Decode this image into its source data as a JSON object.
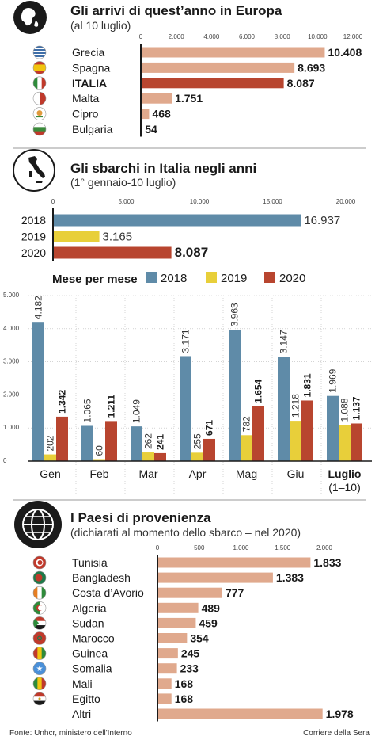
{
  "footer": {
    "source": "Fonte: Unhcr, ministero dell'Interno",
    "publisher": "Corriere della Sera"
  },
  "colors": {
    "bar_default": "#e0a98d",
    "italia": "#b8452f",
    "y2018": "#5f8ba8",
    "y2019": "#e8cf3a",
    "y2020": "#b8452f",
    "rule": "#999999"
  },
  "chart_data": [
    {
      "type": "bar",
      "orientation": "horizontal",
      "title": "Gli arrivi di quest’anno in Europa",
      "subtitle": "(al 10 luglio)",
      "categories": [
        "Grecia",
        "Spagna",
        "ITALIA",
        "Malta",
        "Cipro",
        "Bulgaria"
      ],
      "values": [
        10408,
        8693,
        8087,
        1751,
        468,
        54
      ],
      "value_labels": [
        "10.408",
        "8.693",
        "8.087",
        "1.751",
        "468",
        "54"
      ],
      "icons": [
        "greece-flag-icon",
        "spain-flag-icon",
        "italy-flag-icon",
        "malta-flag-icon",
        "cyprus-flag-icon",
        "bulgaria-flag-icon"
      ],
      "xlim": [
        0,
        12000
      ],
      "xticks": [
        "0",
        "2.000",
        "4.000",
        "6.000",
        "8.000",
        "10.000",
        "12.000"
      ],
      "highlight": "ITALIA"
    },
    {
      "type": "bar",
      "orientation": "horizontal",
      "title": "Gli sbarchi in Italia negli anni",
      "subtitle": "(1° gennaio-10 luglio)",
      "categories": [
        "2018",
        "2019",
        "2020"
      ],
      "values": [
        16937,
        3165,
        8087
      ],
      "value_labels": [
        "16.937",
        "3.165",
        "8.087"
      ],
      "xlim": [
        0,
        20000
      ],
      "xticks": [
        "0",
        "5.000",
        "10.000",
        "15.000",
        "20.000"
      ]
    },
    {
      "type": "bar",
      "orientation": "vertical",
      "title": "Mese per mese",
      "categories": [
        "Gen",
        "Feb",
        "Mar",
        "Apr",
        "Mag",
        "Giu",
        "Luglio"
      ],
      "category_note": "(1–10)",
      "series": [
        {
          "name": "2018",
          "values": [
            4182,
            1065,
            1049,
            3171,
            3963,
            3147,
            1969
          ],
          "labels": [
            "4.182",
            "1.065",
            "1.049",
            "3.171",
            "3.963",
            "3.147",
            "1.969"
          ]
        },
        {
          "name": "2019",
          "values": [
            202,
            60,
            262,
            255,
            782,
            1218,
            1088
          ],
          "labels": [
            "202",
            "60",
            "262",
            "255",
            "782",
            "1.218",
            "1.088"
          ]
        },
        {
          "name": "2020",
          "values": [
            1342,
            1211,
            241,
            671,
            1654,
            1831,
            1137
          ],
          "labels": [
            "1.342",
            "1.211",
            "241",
            "671",
            "1.654",
            "1.831",
            "1.137"
          ]
        }
      ],
      "ylim": [
        0,
        5000
      ],
      "yticks": [
        "0",
        "1.000",
        "2.000",
        "3.000",
        "4.000",
        "5.000"
      ],
      "legend": "top"
    },
    {
      "type": "bar",
      "orientation": "horizontal",
      "title": "I Paesi di provenienza",
      "subtitle": "(dichiarati al momento dello sbarco – nel 2020)",
      "categories": [
        "Tunisia",
        "Bangladesh",
        "Costa d’Avorio",
        "Algeria",
        "Sudan",
        "Marocco",
        "Guinea",
        "Somalia",
        "Mali",
        "Egitto",
        "Altri"
      ],
      "values": [
        1833,
        1383,
        777,
        489,
        459,
        354,
        245,
        233,
        168,
        168,
        1978
      ],
      "value_labels": [
        "1.833",
        "1.383",
        "777",
        "489",
        "459",
        "354",
        "245",
        "233",
        "168",
        "168",
        "1.978"
      ],
      "icons": [
        "tunisia-flag-icon",
        "bangladesh-flag-icon",
        "ivory-coast-flag-icon",
        "algeria-flag-icon",
        "sudan-flag-icon",
        "morocco-flag-icon",
        "guinea-flag-icon",
        "somalia-flag-icon",
        "mali-flag-icon",
        "egypt-flag-icon",
        ""
      ],
      "xlim": [
        0,
        2000
      ],
      "xticks": [
        "0",
        "500",
        "1.000",
        "1.500",
        "2.000"
      ]
    }
  ]
}
